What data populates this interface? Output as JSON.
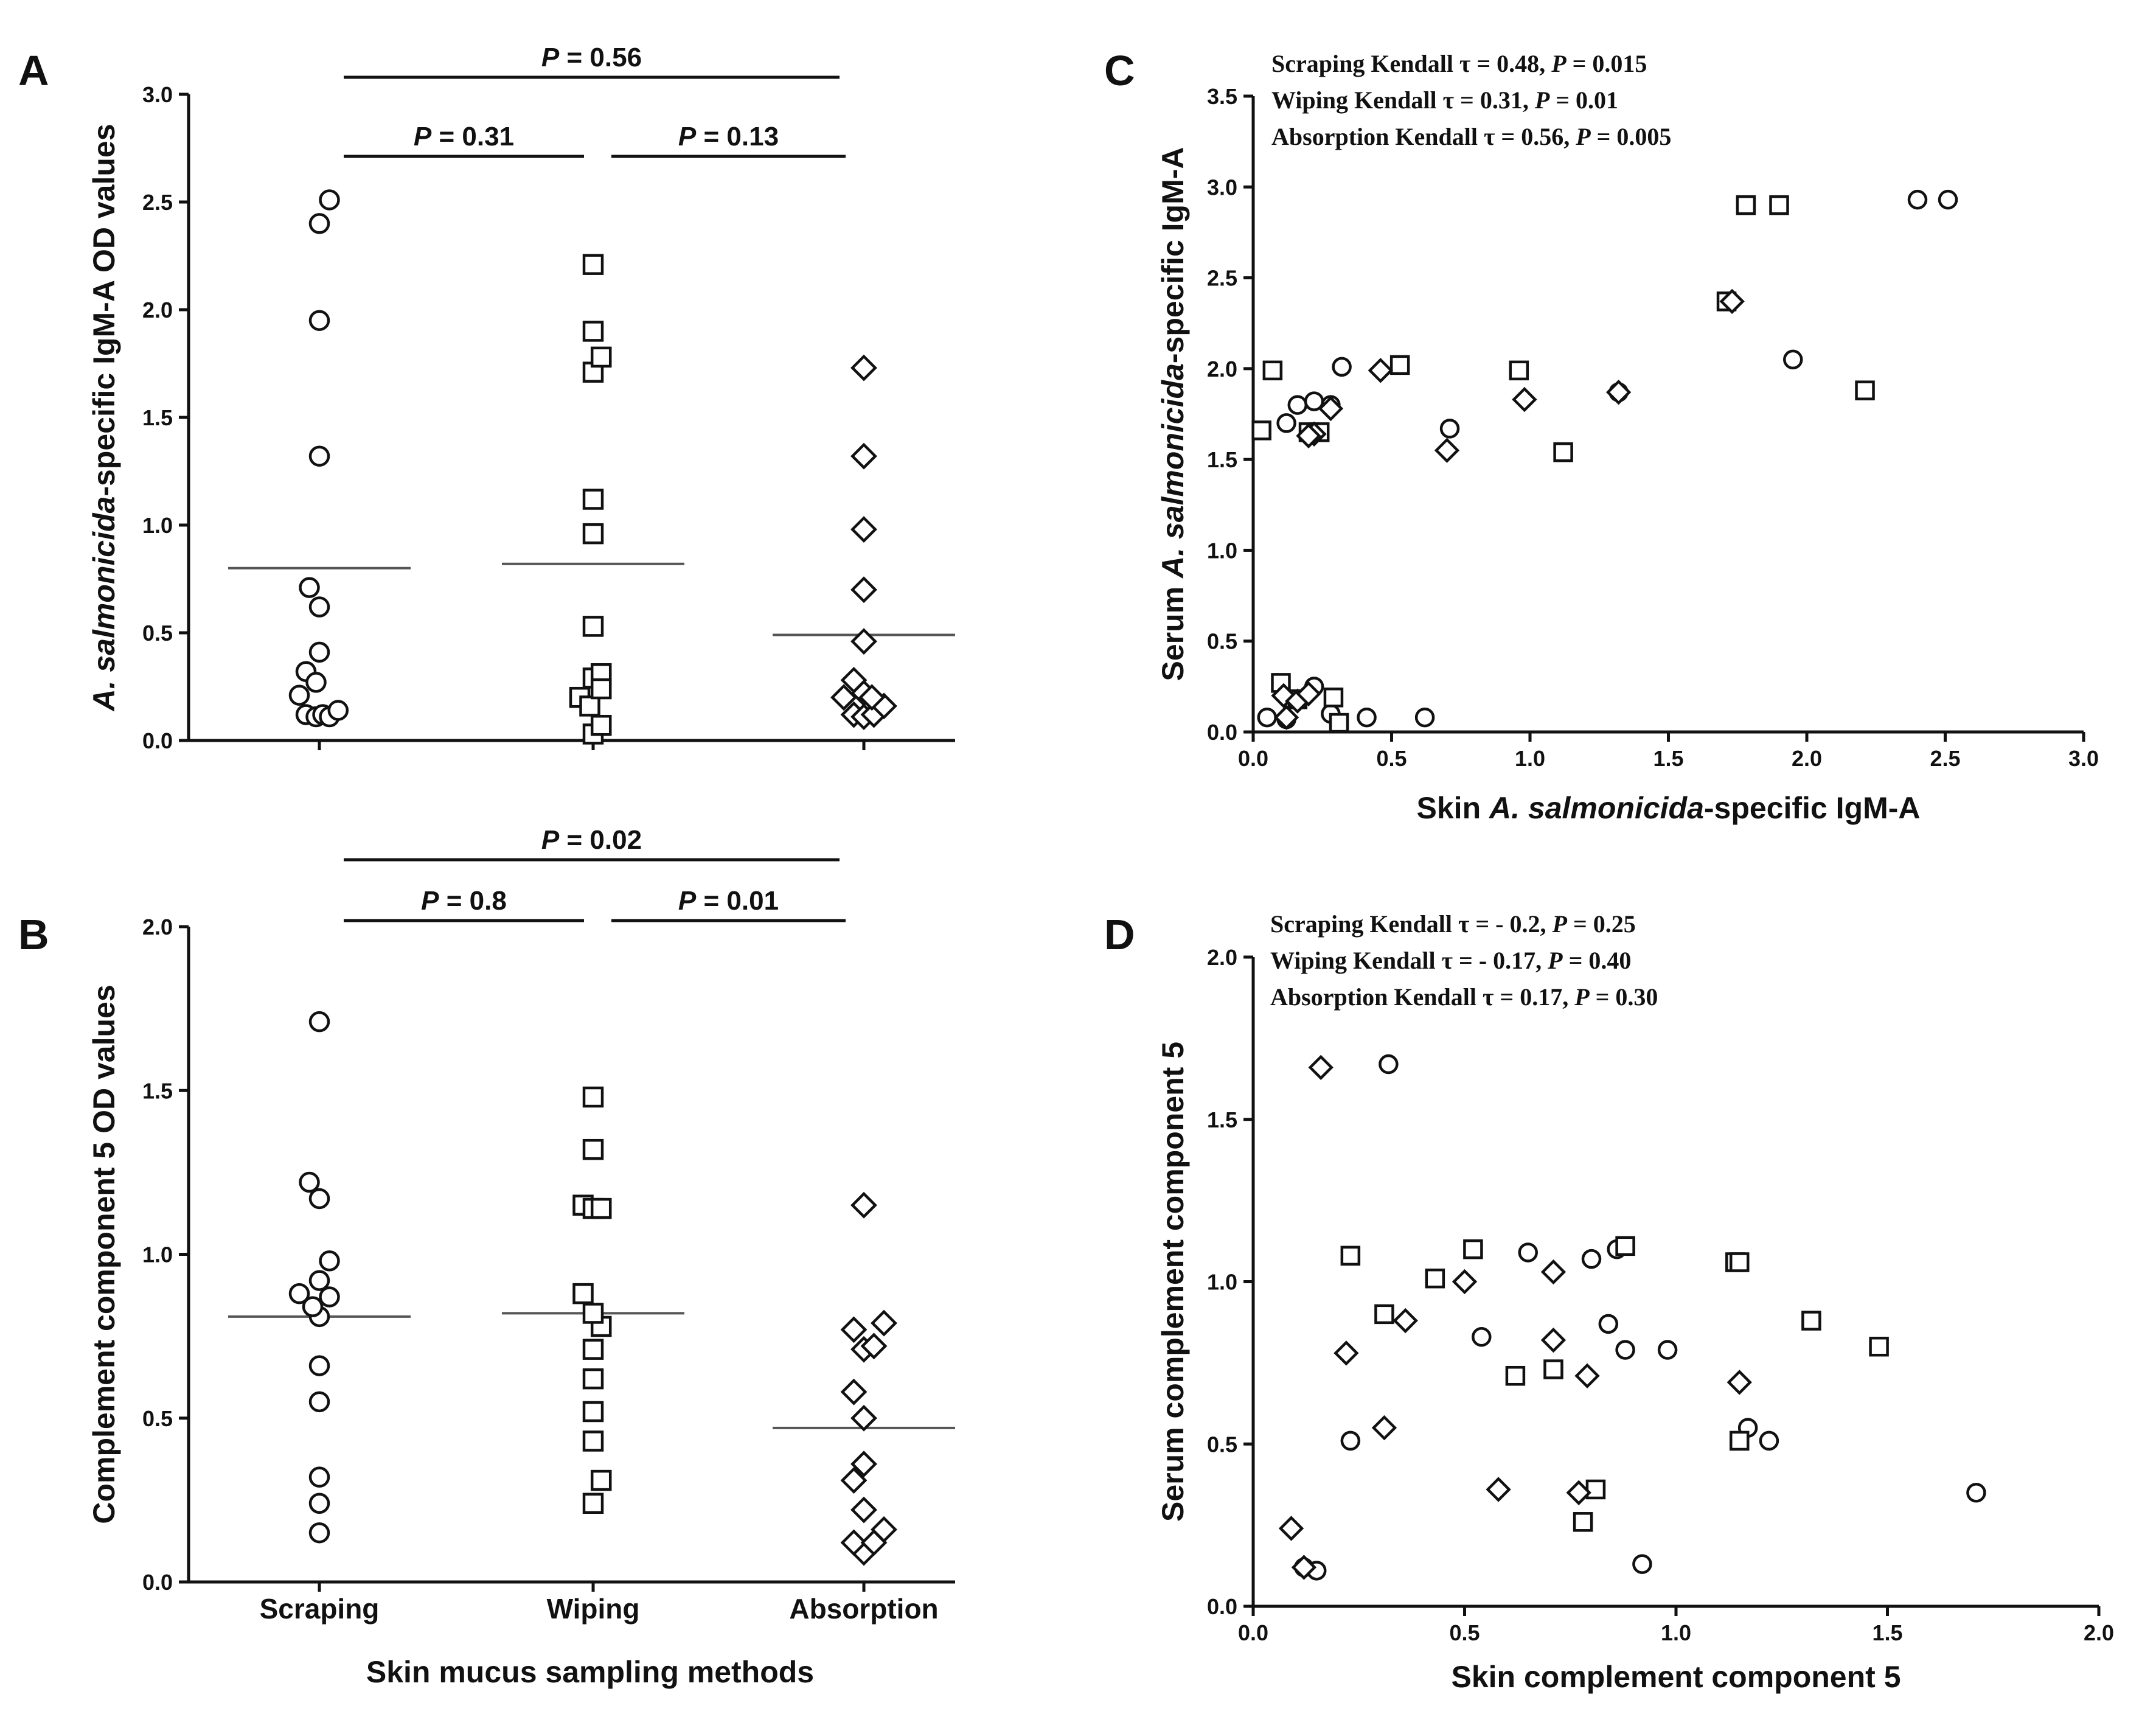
{
  "chart_data": [
    {
      "panel": "A",
      "type": "scatter",
      "ylabel": [
        "A. salmonicida",
        "-specific IgM-A OD values"
      ],
      "ylim": [
        0,
        3.0
      ],
      "yticks": [
        "0.0",
        "0.5",
        "1.0",
        "1.5",
        "2.0",
        "2.5",
        "3.0"
      ],
      "yticks_values": [
        0,
        0.5,
        1.0,
        1.5,
        2.0,
        2.5,
        3.0
      ],
      "groups": [
        {
          "name": "Scraping",
          "marker": "circle",
          "mean": 0.8,
          "points": [
            [
              -0.3,
              0.21
            ],
            [
              -0.2,
              0.12
            ],
            [
              -0.05,
              0.11
            ],
            [
              0.05,
              0.12
            ],
            [
              0.15,
              0.11
            ],
            [
              0.28,
              0.14
            ],
            [
              -0.2,
              0.32
            ],
            [
              -0.05,
              0.27
            ],
            [
              0,
              0.41
            ],
            [
              0,
              0.62
            ],
            [
              -0.15,
              0.71
            ],
            [
              0,
              1.32
            ],
            [
              0,
              1.95
            ],
            [
              0,
              2.4
            ],
            [
              0.15,
              2.51
            ]
          ]
        },
        {
          "name": "Wiping",
          "marker": "square",
          "mean": 0.82,
          "points": [
            [
              -0.2,
              0.2
            ],
            [
              0,
              0.03
            ],
            [
              0.12,
              0.07
            ],
            [
              -0.05,
              0.16
            ],
            [
              0,
              0.29
            ],
            [
              0.12,
              0.31
            ],
            [
              0.12,
              0.24
            ],
            [
              0,
              0.53
            ],
            [
              0,
              0.96
            ],
            [
              0,
              1.12
            ],
            [
              0,
              1.71
            ],
            [
              0.12,
              1.78
            ],
            [
              0,
              1.9
            ],
            [
              0,
              2.21
            ]
          ]
        },
        {
          "name": "Absorption",
          "marker": "diamond",
          "mean": 0.49,
          "points": [
            [
              -0.3,
              0.2
            ],
            [
              -0.15,
              0.12
            ],
            [
              0,
              0.11
            ],
            [
              0.15,
              0.12
            ],
            [
              0.3,
              0.16
            ],
            [
              -0.15,
              0.28
            ],
            [
              0,
              0.22
            ],
            [
              0.12,
              0.2
            ],
            [
              0,
              0.46
            ],
            [
              0,
              0.7
            ],
            [
              0,
              0.98
            ],
            [
              0,
              1.32
            ],
            [
              0,
              1.73
            ]
          ]
        }
      ],
      "comparisons": [
        {
          "from": 0,
          "to": 1,
          "label_p": "P",
          "label_rest": " = 0.31"
        },
        {
          "from": 1,
          "to": 2,
          "label_p": "P",
          "label_rest": " = 0.13"
        },
        {
          "from": 0,
          "to": 2,
          "label_p": "P",
          "label_rest": " = 0.56"
        }
      ]
    },
    {
      "panel": "B",
      "type": "scatter",
      "ylabel": [
        "",
        "Complement component 5 OD values"
      ],
      "xlabel": "Skin mucus sampling methods",
      "categories": [
        "Scraping",
        "Wiping",
        "Absorption"
      ],
      "ylim": [
        0,
        2.0
      ],
      "yticks": [
        "0.0",
        "0.5",
        "1.0",
        "1.5",
        "2.0"
      ],
      "yticks_values": [
        0,
        0.5,
        1.0,
        1.5,
        2.0
      ],
      "groups": [
        {
          "name": "Scraping",
          "marker": "circle",
          "mean": 0.81,
          "points": [
            [
              0,
              0.15
            ],
            [
              0,
              0.24
            ],
            [
              0,
              0.32
            ],
            [
              0,
              0.55
            ],
            [
              0,
              0.66
            ],
            [
              0,
              0.81
            ],
            [
              -0.1,
              0.84
            ],
            [
              -0.3,
              0.88
            ],
            [
              0,
              0.92
            ],
            [
              0.15,
              0.87
            ],
            [
              0.15,
              0.98
            ],
            [
              0,
              1.17
            ],
            [
              -0.15,
              1.22
            ],
            [
              0,
              1.71
            ]
          ]
        },
        {
          "name": "Wiping",
          "marker": "square",
          "mean": 0.82,
          "points": [
            [
              0,
              0.24
            ],
            [
              0.12,
              0.31
            ],
            [
              0,
              0.43
            ],
            [
              0,
              0.52
            ],
            [
              0,
              0.62
            ],
            [
              0,
              0.71
            ],
            [
              0.12,
              0.78
            ],
            [
              0,
              0.82
            ],
            [
              -0.15,
              0.88
            ],
            [
              -0.15,
              1.15
            ],
            [
              0,
              1.14
            ],
            [
              0.12,
              1.14
            ],
            [
              0,
              1.32
            ],
            [
              0,
              1.48
            ]
          ]
        },
        {
          "name": "Absorption",
          "marker": "diamond",
          "mean": 0.47,
          "points": [
            [
              0,
              0.09
            ],
            [
              -0.15,
              0.12
            ],
            [
              0.15,
              0.12
            ],
            [
              0.3,
              0.16
            ],
            [
              0,
              0.22
            ],
            [
              -0.15,
              0.31
            ],
            [
              0,
              0.36
            ],
            [
              0,
              0.5
            ],
            [
              -0.15,
              0.58
            ],
            [
              0,
              0.71
            ],
            [
              -0.15,
              0.77
            ],
            [
              0.15,
              0.72
            ],
            [
              0.3,
              0.79
            ],
            [
              0,
              1.15
            ]
          ]
        }
      ],
      "comparisons": [
        {
          "from": 0,
          "to": 1,
          "label_p": "P",
          "label_rest": " = 0.8"
        },
        {
          "from": 1,
          "to": 2,
          "label_p": "P",
          "label_rest": " = 0.01"
        },
        {
          "from": 0,
          "to": 2,
          "label_p": "P",
          "label_rest": " = 0.02"
        }
      ]
    },
    {
      "panel": "C",
      "type": "scatter",
      "xlabel": [
        "Skin ",
        "A. salmonicida",
        "-specific IgM-A"
      ],
      "ylabel": [
        "Serum ",
        "A. salmonicida",
        "-specific IgM-A"
      ],
      "xlim": [
        0,
        3.0
      ],
      "ylim": [
        0,
        3.5
      ],
      "xticks": [
        "0.0",
        "0.5",
        "1.0",
        "1.5",
        "2.0",
        "2.5",
        "3.0"
      ],
      "xticks_values": [
        0,
        0.5,
        1.0,
        1.5,
        2.0,
        2.5,
        3.0
      ],
      "yticks": [
        "0.0",
        "0.5",
        "1.0",
        "1.5",
        "2.0",
        "2.5",
        "3.0",
        "3.5"
      ],
      "yticks_values": [
        0,
        0.5,
        1.0,
        1.5,
        2.0,
        2.5,
        3.0,
        3.5
      ],
      "annotations": [
        [
          "Scraping Kendall τ = 0.48, ",
          "P",
          " = 0.015"
        ],
        [
          "Wiping Kendall τ = 0.31, ",
          "P",
          " = 0.01"
        ],
        [
          "Absorption Kendall τ = 0.56, ",
          "P",
          " = 0.005"
        ]
      ],
      "series": [
        {
          "name": "Scraping",
          "marker": "circle",
          "points": [
            [
              0.05,
              0.08
            ],
            [
              0.12,
              0.07
            ],
            [
              0.22,
              0.25
            ],
            [
              0.28,
              0.1
            ],
            [
              0.41,
              0.08
            ],
            [
              0.62,
              0.08
            ],
            [
              0.12,
              1.7
            ],
            [
              0.16,
              1.8
            ],
            [
              0.22,
              1.82
            ],
            [
              0.28,
              1.8
            ],
            [
              0.32,
              2.01
            ],
            [
              0.71,
              1.67
            ],
            [
              1.32,
              1.87
            ],
            [
              1.95,
              2.05
            ],
            [
              2.4,
              2.93
            ],
            [
              2.51,
              2.93
            ]
          ]
        },
        {
          "name": "Wiping",
          "marker": "square",
          "points": [
            [
              0.03,
              1.66
            ],
            [
              0.07,
              1.99
            ],
            [
              0.1,
              0.27
            ],
            [
              0.16,
              0.18
            ],
            [
              0.2,
              1.65
            ],
            [
              0.24,
              1.65
            ],
            [
              0.29,
              0.19
            ],
            [
              0.31,
              0.05
            ],
            [
              0.53,
              2.02
            ],
            [
              0.96,
              1.99
            ],
            [
              1.12,
              1.54
            ],
            [
              1.71,
              2.37
            ],
            [
              1.78,
              2.9
            ],
            [
              1.9,
              2.9
            ],
            [
              2.21,
              1.88
            ]
          ]
        },
        {
          "name": "Absorption",
          "marker": "diamond",
          "points": [
            [
              0.11,
              0.2
            ],
            [
              0.12,
              0.08
            ],
            [
              0.16,
              0.17
            ],
            [
              0.2,
              0.21
            ],
            [
              0.22,
              1.64
            ],
            [
              0.28,
              1.78
            ],
            [
              0.2,
              1.63
            ],
            [
              0.46,
              1.99
            ],
            [
              0.7,
              1.55
            ],
            [
              0.98,
              1.83
            ],
            [
              1.32,
              1.87
            ],
            [
              1.73,
              2.37
            ]
          ]
        }
      ]
    },
    {
      "panel": "D",
      "type": "scatter",
      "xlabel": [
        "Skin complement component 5"
      ],
      "ylabel": [
        "Serum complement component 5"
      ],
      "xlim": [
        0,
        2.0
      ],
      "ylim": [
        0,
        2.0
      ],
      "xticks": [
        "0.0",
        "0.5",
        "1.0",
        "1.5",
        "2.0"
      ],
      "xticks_values": [
        0,
        0.5,
        1.0,
        1.5,
        2.0
      ],
      "yticks": [
        "0.0",
        "0.5",
        "1.0",
        "1.5",
        "2.0"
      ],
      "yticks_values": [
        0,
        0.5,
        1.0,
        1.5,
        2.0
      ],
      "annotations": [
        [
          "Scraping Kendall τ = - 0.2, ",
          "P",
          " = 0.25"
        ],
        [
          "Wiping Kendall τ = - 0.17, ",
          "P",
          " = 0.40"
        ],
        [
          "Absorption Kendall τ = 0.17, ",
          "P",
          " = 0.30"
        ]
      ],
      "series": [
        {
          "name": "Scraping",
          "marker": "circle",
          "points": [
            [
              0.12,
              0.12
            ],
            [
              0.15,
              0.11
            ],
            [
              0.23,
              0.51
            ],
            [
              0.32,
              1.67
            ],
            [
              0.54,
              0.83
            ],
            [
              0.65,
              1.09
            ],
            [
              0.8,
              1.07
            ],
            [
              0.84,
              0.87
            ],
            [
              0.86,
              1.1
            ],
            [
              0.88,
              0.79
            ],
            [
              0.92,
              0.13
            ],
            [
              0.98,
              0.79
            ],
            [
              1.17,
              0.55
            ],
            [
              1.22,
              0.51
            ],
            [
              1.71,
              0.35
            ]
          ]
        },
        {
          "name": "Wiping",
          "marker": "square",
          "points": [
            [
              0.23,
              1.08
            ],
            [
              0.31,
              0.9
            ],
            [
              0.43,
              1.01
            ],
            [
              0.52,
              1.1
            ],
            [
              0.62,
              0.71
            ],
            [
              0.71,
              0.73
            ],
            [
              0.78,
              0.26
            ],
            [
              0.81,
              0.36
            ],
            [
              0.88,
              1.11
            ],
            [
              1.14,
              1.06
            ],
            [
              1.15,
              1.06
            ],
            [
              1.15,
              0.51
            ],
            [
              1.32,
              0.88
            ],
            [
              1.48,
              0.8
            ]
          ]
        },
        {
          "name": "Absorption",
          "marker": "diamond",
          "points": [
            [
              0.09,
              0.24
            ],
            [
              0.12,
              0.12
            ],
            [
              0.16,
              1.66
            ],
            [
              0.22,
              0.78
            ],
            [
              0.31,
              0.55
            ],
            [
              0.36,
              0.88
            ],
            [
              0.5,
              1.0
            ],
            [
              0.58,
              0.36
            ],
            [
              0.71,
              1.03
            ],
            [
              0.71,
              0.82
            ],
            [
              0.77,
              0.35
            ],
            [
              0.79,
              0.71
            ],
            [
              1.15,
              0.69
            ]
          ]
        }
      ]
    }
  ],
  "panels": {
    "A": {
      "letter": "A"
    },
    "B": {
      "letter": "B"
    },
    "C": {
      "letter": "C"
    },
    "D": {
      "letter": "D"
    }
  }
}
